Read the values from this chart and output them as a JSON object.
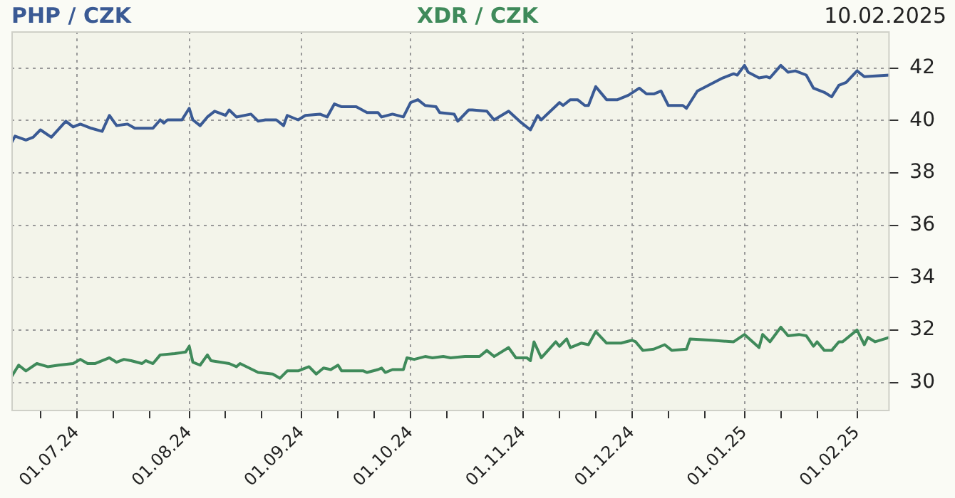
{
  "chart_data": {
    "type": "line",
    "title": "10.02.2025",
    "legend": "top",
    "grid": true,
    "marker": "none",
    "xlim": [
      "2024-06-13",
      "2025-02-10"
    ],
    "ylim": [
      28.9,
      43.4
    ],
    "yticks": [
      30,
      32,
      34,
      36,
      38,
      40,
      42
    ],
    "xticks": [
      {
        "value": "2024-06-21",
        "label": null
      },
      {
        "value": "2024-07-01",
        "label": "01.07.24"
      },
      {
        "value": "2024-07-11",
        "label": null
      },
      {
        "value": "2024-07-21",
        "label": null
      },
      {
        "value": "2024-08-01",
        "label": "01.08.24"
      },
      {
        "value": "2024-08-11",
        "label": null
      },
      {
        "value": "2024-08-21",
        "label": null
      },
      {
        "value": "2024-09-01",
        "label": "01.09.24"
      },
      {
        "value": "2024-09-11",
        "label": null
      },
      {
        "value": "2024-09-21",
        "label": null
      },
      {
        "value": "2024-10-01",
        "label": "01.10.24"
      },
      {
        "value": "2024-10-11",
        "label": null
      },
      {
        "value": "2024-10-21",
        "label": null
      },
      {
        "value": "2024-11-01",
        "label": "01.11.24"
      },
      {
        "value": "2024-11-11",
        "label": null
      },
      {
        "value": "2024-11-21",
        "label": null
      },
      {
        "value": "2024-12-01",
        "label": "01.12.24"
      },
      {
        "value": "2024-12-11",
        "label": null
      },
      {
        "value": "2024-12-21",
        "label": null
      },
      {
        "value": "2025-01-01",
        "label": "01.01.25"
      },
      {
        "value": "2025-01-11",
        "label": null
      },
      {
        "value": "2025-01-21",
        "label": null
      },
      {
        "value": "2025-02-01",
        "label": "01.02.25"
      }
    ],
    "series": [
      {
        "name": "PHP / CZK",
        "color": "#3a5a94",
        "x": [
          "2024-06-13",
          "2024-06-14",
          "2024-06-17",
          "2024-06-19",
          "2024-06-21",
          "2024-06-24",
          "2024-06-28",
          "2024-06-30",
          "2024-07-02",
          "2024-07-05",
          "2024-07-08",
          "2024-07-10",
          "2024-07-12",
          "2024-07-15",
          "2024-07-17",
          "2024-07-22",
          "2024-07-24",
          "2024-07-25",
          "2024-07-26",
          "2024-07-30",
          "2024-08-01",
          "2024-08-02",
          "2024-08-04",
          "2024-08-06",
          "2024-08-08",
          "2024-08-11",
          "2024-08-12",
          "2024-08-14",
          "2024-08-18",
          "2024-08-20",
          "2024-08-22",
          "2024-08-25",
          "2024-08-27",
          "2024-08-28",
          "2024-08-31",
          "2024-09-02",
          "2024-09-06",
          "2024-09-08",
          "2024-09-10",
          "2024-09-12",
          "2024-09-16",
          "2024-09-19",
          "2024-09-22",
          "2024-09-23",
          "2024-09-26",
          "2024-09-29",
          "2024-10-01",
          "2024-10-03",
          "2024-10-05",
          "2024-10-08",
          "2024-10-09",
          "2024-10-13",
          "2024-10-14",
          "2024-10-17",
          "2024-10-18",
          "2024-10-22",
          "2024-10-24",
          "2024-10-28",
          "2024-10-31",
          "2024-11-03",
          "2024-11-05",
          "2024-11-06",
          "2024-11-11",
          "2024-11-12",
          "2024-11-14",
          "2024-11-16",
          "2024-11-18",
          "2024-11-19",
          "2024-11-21",
          "2024-11-24",
          "2024-11-27",
          "2024-11-30",
          "2024-12-03",
          "2024-12-05",
          "2024-12-07",
          "2024-12-09",
          "2024-12-11",
          "2024-12-15",
          "2024-12-16",
          "2024-12-19",
          "2024-12-26",
          "2024-12-29",
          "2024-12-30",
          "2025-01-01",
          "2025-01-02",
          "2025-01-05",
          "2025-01-07",
          "2025-01-08",
          "2025-01-11",
          "2025-01-13",
          "2025-01-15",
          "2025-01-18",
          "2025-01-20",
          "2025-01-23",
          "2025-01-25",
          "2025-01-27",
          "2025-01-29",
          "2025-02-01",
          "2025-02-02",
          "2025-02-03",
          "2025-02-10"
        ],
        "values": [
          39.14,
          39.4,
          39.25,
          39.36,
          39.64,
          39.36,
          39.97,
          39.75,
          39.86,
          39.7,
          39.58,
          40.19,
          39.8,
          39.86,
          39.7,
          39.7,
          40.02,
          39.9,
          40.02,
          40.02,
          40.46,
          40.02,
          39.8,
          40.13,
          40.35,
          40.19,
          40.4,
          40.13,
          40.24,
          39.97,
          40.02,
          40.02,
          39.8,
          40.19,
          40.02,
          40.19,
          40.24,
          40.13,
          40.63,
          40.52,
          40.52,
          40.3,
          40.3,
          40.13,
          40.24,
          40.13,
          40.68,
          40.79,
          40.57,
          40.52,
          40.3,
          40.24,
          39.97,
          40.4,
          40.4,
          40.35,
          40.02,
          40.35,
          39.97,
          39.64,
          40.19,
          40.02,
          40.68,
          40.57,
          40.79,
          40.79,
          40.57,
          40.57,
          41.29,
          40.79,
          40.79,
          40.96,
          41.23,
          41.01,
          41.01,
          41.12,
          40.57,
          40.57,
          40.46,
          41.12,
          41.62,
          41.78,
          41.73,
          42.1,
          41.84,
          41.62,
          41.67,
          41.62,
          42.1,
          41.84,
          41.89,
          41.73,
          41.23,
          41.07,
          40.9,
          41.34,
          41.45,
          41.89,
          41.78,
          41.67,
          41.73
        ]
      },
      {
        "name": "XDR / CZK",
        "color": "#3f8a5a",
        "x": [
          "2024-06-13",
          "2024-06-15",
          "2024-06-17",
          "2024-06-20",
          "2024-06-23",
          "2024-06-26",
          "2024-06-30",
          "2024-07-02",
          "2024-07-04",
          "2024-07-06",
          "2024-07-10",
          "2024-07-12",
          "2024-07-14",
          "2024-07-16",
          "2024-07-19",
          "2024-07-20",
          "2024-07-22",
          "2024-07-24",
          "2024-07-28",
          "2024-07-31",
          "2024-08-01",
          "2024-08-02",
          "2024-08-04",
          "2024-08-06",
          "2024-08-07",
          "2024-08-12",
          "2024-08-14",
          "2024-08-15",
          "2024-08-20",
          "2024-08-24",
          "2024-08-26",
          "2024-08-28",
          "2024-08-31",
          "2024-09-03",
          "2024-09-05",
          "2024-09-07",
          "2024-09-09",
          "2024-09-11",
          "2024-09-12",
          "2024-09-18",
          "2024-09-19",
          "2024-09-22",
          "2024-09-23",
          "2024-09-24",
          "2024-09-26",
          "2024-09-29",
          "2024-09-30",
          "2024-10-02",
          "2024-10-05",
          "2024-10-07",
          "2024-10-10",
          "2024-10-12",
          "2024-10-16",
          "2024-10-20",
          "2024-10-22",
          "2024-10-24",
          "2024-10-28",
          "2024-10-30",
          "2024-11-02",
          "2024-11-03",
          "2024-11-04",
          "2024-11-06",
          "2024-11-10",
          "2024-11-11",
          "2024-11-13",
          "2024-11-14",
          "2024-11-17",
          "2024-11-19",
          "2024-11-21",
          "2024-11-24",
          "2024-11-28",
          "2024-12-01",
          "2024-12-02",
          "2024-12-04",
          "2024-12-07",
          "2024-12-10",
          "2024-12-12",
          "2024-12-16",
          "2024-12-17",
          "2024-12-23",
          "2024-12-29",
          "2025-01-01",
          "2025-01-05",
          "2025-01-06",
          "2025-01-08",
          "2025-01-11",
          "2025-01-13",
          "2025-01-16",
          "2025-01-18",
          "2025-01-20",
          "2025-01-21",
          "2025-01-23",
          "2025-01-25",
          "2025-01-27",
          "2025-01-28",
          "2025-02-01",
          "2025-02-03",
          "2025-02-04",
          "2025-02-06",
          "2025-02-10"
        ],
        "values": [
          30.21,
          30.66,
          30.44,
          30.72,
          30.6,
          30.66,
          30.72,
          30.88,
          30.72,
          30.72,
          30.94,
          30.77,
          30.88,
          30.83,
          30.72,
          30.83,
          30.72,
          31.05,
          31.1,
          31.16,
          31.38,
          30.77,
          30.66,
          31.05,
          30.83,
          30.72,
          30.6,
          30.72,
          30.38,
          30.32,
          30.16,
          30.44,
          30.44,
          30.6,
          30.32,
          30.55,
          30.49,
          30.66,
          30.44,
          30.44,
          30.38,
          30.49,
          30.55,
          30.38,
          30.49,
          30.49,
          30.94,
          30.88,
          30.99,
          30.94,
          30.99,
          30.94,
          30.99,
          30.99,
          31.22,
          30.99,
          31.33,
          30.94,
          30.94,
          30.83,
          31.55,
          30.94,
          31.55,
          31.38,
          31.66,
          31.33,
          31.5,
          31.44,
          31.94,
          31.5,
          31.5,
          31.61,
          31.55,
          31.22,
          31.27,
          31.44,
          31.22,
          31.27,
          31.66,
          31.61,
          31.55,
          31.83,
          31.33,
          31.83,
          31.55,
          32.11,
          31.78,
          31.83,
          31.78,
          31.38,
          31.55,
          31.22,
          31.22,
          31.55,
          31.55,
          32.0,
          31.44,
          31.72,
          31.55,
          31.72
        ]
      }
    ]
  }
}
